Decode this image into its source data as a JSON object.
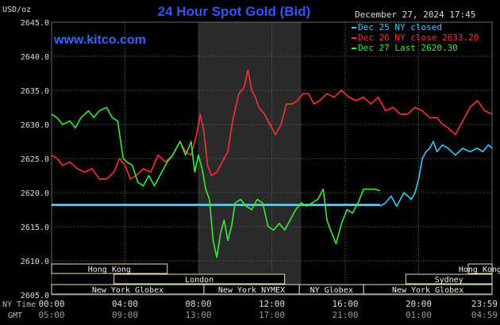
{
  "title": "24 Hour Spot Gold (Bid)",
  "unit_label": "USD/oz",
  "website": "www.kitco.com",
  "timestamp": "December 27, 2024 17:45",
  "colors": {
    "background": "#000000",
    "title": "#3355ff",
    "website": "#3366ff",
    "dec25": "#33ccff",
    "dec26": "#ff3030",
    "dec27": "#33ee33",
    "grid": "#666666",
    "axis_text": "#dddddd",
    "shade": "#2a2a2a",
    "session_box": "#f0e0b0"
  },
  "legend": [
    {
      "key": "dec25",
      "text": "Dec 25 NY closed"
    },
    {
      "key": "dec26",
      "text": "Dec 26 NY close 2633.20"
    },
    {
      "key": "dec27",
      "text": "Dec 27 Last 2620.30"
    }
  ],
  "sessions": [
    {
      "label": "Hong Kong",
      "start": 0,
      "end": 6.3
    },
    {
      "label": "Hong Kong",
      "start": 22.7,
      "end": 24
    },
    {
      "label": "London",
      "start": 3.4,
      "end": 12.7
    },
    {
      "label": "Sydney",
      "start": 19.3,
      "end": 24
    },
    {
      "label": "New York Globex",
      "start": 0,
      "end": 8.3
    },
    {
      "label": "New York NYMEX",
      "start": 8.3,
      "end": 13.5
    },
    {
      "label": "NY Globex",
      "start": 13.5,
      "end": 17.0
    },
    {
      "label": "New York Globex",
      "start": 17.0,
      "end": 24
    }
  ],
  "x_ticks": [
    {
      "ny": "00:00",
      "gmt": "05:00"
    },
    {
      "ny": "04:00",
      "gmt": "09:00"
    },
    {
      "ny": "08:00",
      "gmt": "13:00"
    },
    {
      "ny": "12:00",
      "gmt": "17:00"
    },
    {
      "ny": "16:00",
      "gmt": "21:00"
    },
    {
      "ny": "20:00",
      "gmt": "01:00"
    },
    {
      "ny": "23:59",
      "gmt": "04:59"
    }
  ],
  "x_row_labels": {
    "ny": "NY Time",
    "gmt": "GMT"
  },
  "chart_data": {
    "type": "line",
    "title": "24 Hour Spot Gold (Bid)",
    "ylabel": "USD/oz",
    "xlabel": "",
    "xlim": [
      0,
      24
    ],
    "ylim": [
      2605,
      2645
    ],
    "y_ticks": [
      "2605.0",
      "2610.0",
      "2615.0",
      "2620.0",
      "2625.0",
      "2630.0",
      "2635.0",
      "2640.0",
      "2645.0"
    ],
    "grid": true,
    "legend_position": "top-right",
    "shaded_region": [
      8.0,
      13.6
    ],
    "series": [
      {
        "name": "Dec 25 NY closed",
        "key": "dec25",
        "x": [
          0,
          17.9
        ],
        "y": [
          2618.2,
          2618.2
        ]
      },
      {
        "name": "Dec 25 NY closed",
        "key": "dec25",
        "x": [
          17.9,
          18.2,
          18.5,
          18.8,
          19.0,
          19.2,
          19.4,
          19.6,
          19.8,
          20.0,
          20.2,
          20.4,
          20.6,
          20.8,
          21.0,
          21.3,
          21.6,
          22.0,
          22.4,
          22.8,
          23.2,
          23.5,
          23.8,
          24.0
        ],
        "y": [
          2618.0,
          2618.5,
          2619.5,
          2618.0,
          2619.0,
          2620.0,
          2619.5,
          2619.0,
          2620.0,
          2622.0,
          2625.0,
          2626.0,
          2626.5,
          2627.5,
          2626.0,
          2627.0,
          2626.5,
          2625.5,
          2626.5,
          2626.0,
          2626.5,
          2626.0,
          2627.0,
          2626.5
        ]
      },
      {
        "name": "Dec 26 NY close 2633.20",
        "key": "dec26",
        "x": [
          0,
          0.3,
          0.6,
          1.0,
          1.4,
          1.8,
          2.2,
          2.6,
          3.0,
          3.4,
          3.7,
          4.0,
          4.3,
          4.6,
          5.0,
          5.4,
          5.8,
          6.2,
          6.6,
          7.0,
          7.3,
          7.6,
          7.9,
          8.1,
          8.3,
          8.5,
          8.7,
          9.0,
          9.3,
          9.6,
          9.9,
          10.2,
          10.5,
          10.7,
          10.9,
          11.1,
          11.3,
          11.6,
          11.9,
          12.2,
          12.5,
          12.8,
          13.1,
          13.4,
          13.7,
          14.0,
          14.3,
          14.6,
          15.0,
          15.4,
          15.8,
          16.2,
          16.6,
          17.0,
          17.4,
          17.8,
          18.2,
          18.6,
          19.0,
          19.4,
          19.8,
          20.2,
          20.6,
          21.0,
          21.3,
          21.6,
          22.0,
          22.4,
          22.8,
          23.2,
          23.6,
          24.0
        ],
        "y": [
          2625.5,
          2625.0,
          2624.0,
          2624.5,
          2623.5,
          2623.0,
          2623.5,
          2622.0,
          2622.0,
          2623.0,
          2625.0,
          2624.0,
          2622.0,
          2622.5,
          2623.5,
          2623.0,
          2625.5,
          2624.5,
          2625.5,
          2627.5,
          2626.0,
          2625.5,
          2628.5,
          2631.5,
          2629.0,
          2624.0,
          2622.5,
          2623.0,
          2624.5,
          2626.0,
          2631.0,
          2634.5,
          2635.5,
          2638.0,
          2635.0,
          2634.0,
          2632.5,
          2631.5,
          2630.0,
          2628.5,
          2630.0,
          2633.0,
          2633.0,
          2633.5,
          2634.5,
          2634.5,
          2633.0,
          2633.5,
          2634.5,
          2634.0,
          2635.0,
          2634.0,
          2633.5,
          2634.0,
          2633.0,
          2634.0,
          2632.0,
          2632.5,
          2631.5,
          2631.5,
          2632.5,
          2632.0,
          2631.0,
          2631.0,
          2630.0,
          2629.5,
          2628.5,
          2630.5,
          2632.5,
          2633.5,
          2632.0,
          2631.5
        ]
      },
      {
        "name": "Dec 27 Last 2620.30",
        "key": "dec27",
        "x": [
          0,
          0.3,
          0.6,
          1.0,
          1.3,
          1.6,
          2.0,
          2.3,
          2.6,
          3.0,
          3.3,
          3.6,
          3.9,
          4.1,
          4.4,
          4.7,
          5.0,
          5.3,
          5.6,
          6.0,
          6.3,
          6.6,
          7.0,
          7.3,
          7.6,
          7.8,
          8.0,
          8.2,
          8.4,
          8.6,
          8.8,
          9.0,
          9.2,
          9.4,
          9.6,
          9.8,
          10.0,
          10.3,
          10.6,
          10.9,
          11.2,
          11.5,
          11.8,
          12.1,
          12.4,
          12.7,
          13.0,
          13.3,
          13.6,
          13.9,
          14.2,
          14.5,
          14.8,
          15.0,
          15.2,
          15.5,
          15.8,
          16.1,
          16.4,
          16.7,
          17.0,
          17.3,
          17.6,
          17.9
        ],
        "y": [
          2631.5,
          2631.0,
          2630.0,
          2630.5,
          2629.5,
          2631.0,
          2632.0,
          2631.0,
          2632.0,
          2632.5,
          2631.0,
          2630.5,
          2625.0,
          2624.5,
          2624.0,
          2621.5,
          2621.0,
          2622.5,
          2621.0,
          2623.0,
          2624.5,
          2625.5,
          2627.5,
          2625.5,
          2627.5,
          2623.0,
          2625.5,
          2623.5,
          2620.5,
          2619.0,
          2613.0,
          2610.5,
          2614.0,
          2616.0,
          2613.0,
          2615.0,
          2618.5,
          2619.0,
          2618.0,
          2617.5,
          2619.0,
          2618.5,
          2615.0,
          2614.5,
          2615.5,
          2614.5,
          2616.0,
          2617.5,
          2618.5,
          2618.0,
          2618.5,
          2619.0,
          2620.5,
          2616.0,
          2614.5,
          2612.5,
          2615.5,
          2617.5,
          2617.0,
          2618.5,
          2620.5,
          2620.5,
          2620.5,
          2620.3
        ]
      }
    ]
  }
}
